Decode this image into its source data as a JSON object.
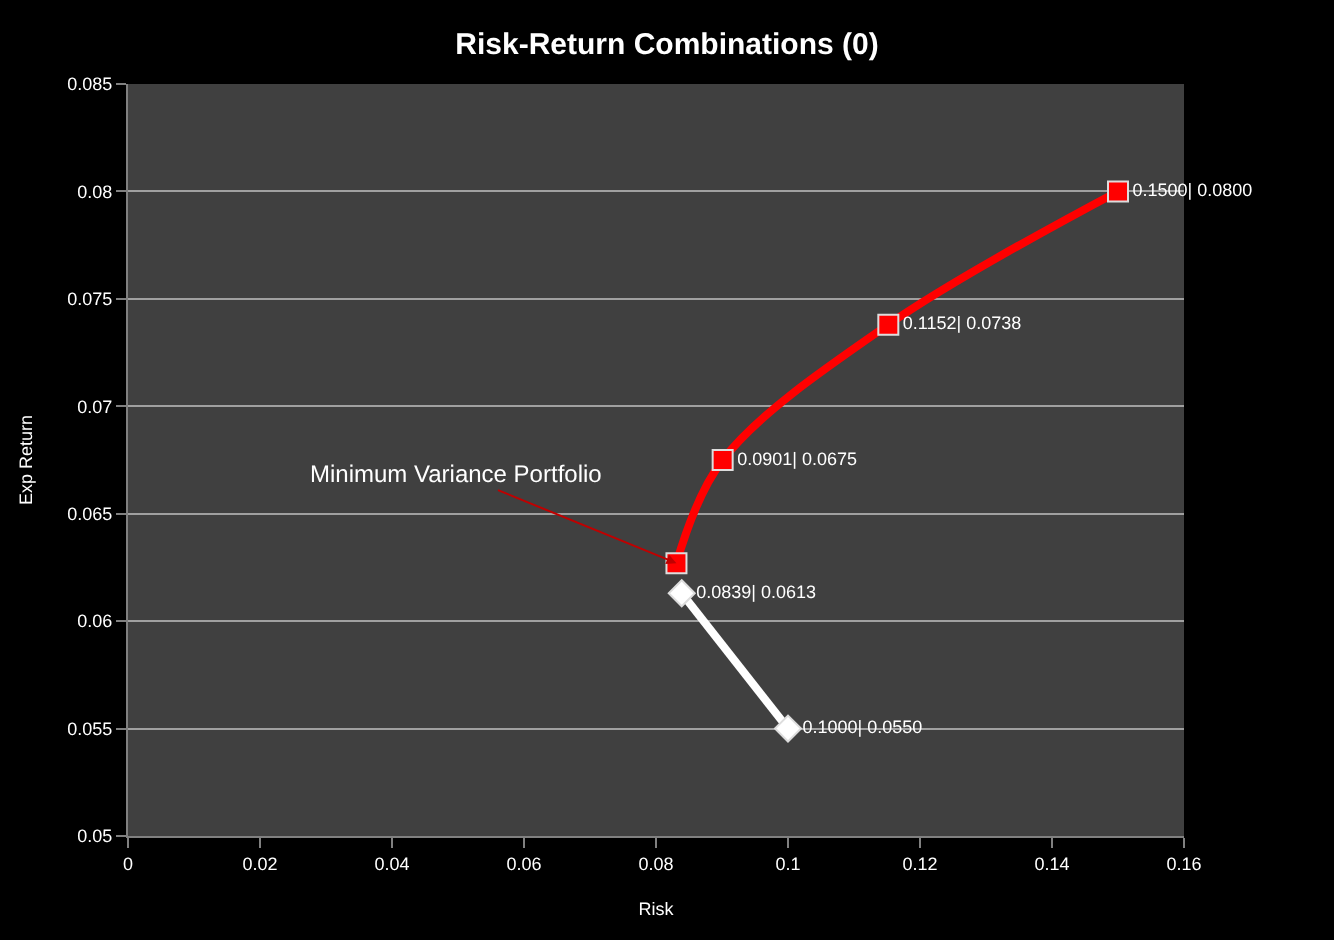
{
  "chart_data": {
    "type": "line",
    "title": "Risk-Return Combinations (0)",
    "xlabel": "Risk",
    "ylabel": "Exp Return",
    "xlim": [
      0,
      0.16
    ],
    "xticks": [
      0,
      0.02,
      0.04,
      0.06,
      0.08,
      0.1,
      0.12,
      0.14,
      0.16
    ],
    "ylim": [
      0.05,
      0.085
    ],
    "yticks": [
      0.05,
      0.055,
      0.06,
      0.065,
      0.07,
      0.075,
      0.08,
      0.085
    ],
    "grid": "y",
    "legend": false,
    "series": [
      {
        "color": "#ffffff",
        "marker": "diamond",
        "x": [
          0.1,
          0.0839
        ],
        "values": [
          0.055,
          0.0613
        ],
        "value_labels": [
          "0.1000| 0.0550",
          "0.0839| 0.0613"
        ]
      },
      {
        "color": "#ff0000",
        "marker": "square",
        "x": [
          0.0831,
          0.0901,
          0.1152,
          0.15
        ],
        "values": [
          0.0627,
          0.0675,
          0.0738,
          0.08
        ],
        "value_labels": [
          null,
          "0.0901| 0.0675",
          "0.1152| 0.0738",
          "0.1500| 0.0800"
        ]
      }
    ],
    "annotations": [
      {
        "text": "Minimum Variance Portfolio",
        "x": 0.0831,
        "y": 0.0627
      }
    ]
  }
}
